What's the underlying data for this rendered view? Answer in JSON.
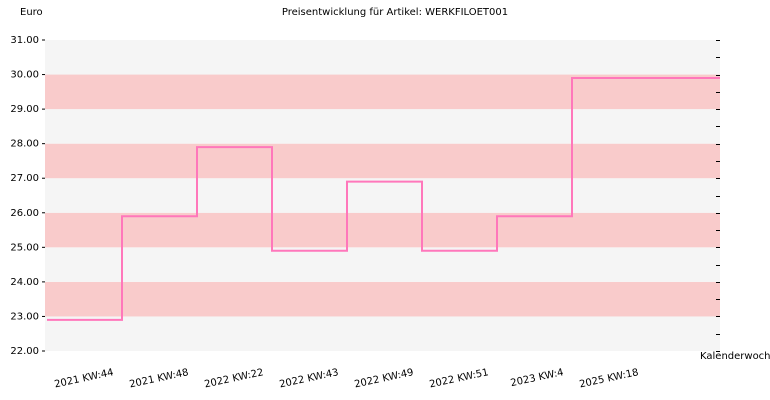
{
  "chart_data": {
    "type": "line",
    "step": true,
    "title": "Preisentwicklung für Artikel: WERKFILOET001",
    "ylabel": "Euro",
    "xlabel": "Kalenderwoche",
    "ylim": [
      22.0,
      31.0
    ],
    "y_ticks": [
      "22.00",
      "23.00",
      "24.00",
      "25.00",
      "26.00",
      "27.00",
      "28.00",
      "29.00",
      "30.00",
      "31.00"
    ],
    "categories": [
      "2021 KW:44",
      "2021 KW:48",
      "2022 KW:22",
      "2022 KW:43",
      "2022 KW:49",
      "2022 KW:51",
      "2023 KW:4",
      "2025 KW:18"
    ],
    "series": [
      {
        "values": [
          22.9,
          25.9,
          27.9,
          24.9,
          26.9,
          24.9,
          25.9,
          29.9
        ]
      }
    ],
    "grid": true,
    "colors": {
      "line": "#ff77bb",
      "band_pink": "#f9cbcb",
      "band_light": "#f5f5f5"
    }
  }
}
